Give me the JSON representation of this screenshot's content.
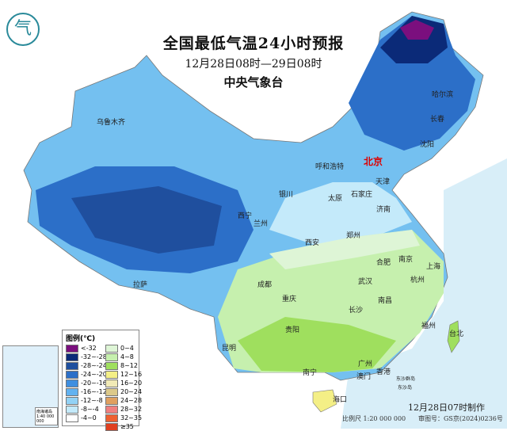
{
  "header": {
    "title": "全国最低气温24小时预报",
    "period": "12月28日08时—29日08时",
    "agency": "中央气象台"
  },
  "logo": {
    "icon": "cma-logo-icon"
  },
  "cities": [
    {
      "name": "哈尔滨",
      "capital": false
    },
    {
      "name": "长春",
      "capital": false
    },
    {
      "name": "沈阳",
      "capital": false
    },
    {
      "name": "乌鲁木齐",
      "capital": false
    },
    {
      "name": "呼和浩特",
      "capital": false
    },
    {
      "name": "北京",
      "capital": true
    },
    {
      "name": "天津",
      "capital": false
    },
    {
      "name": "银川",
      "capital": false
    },
    {
      "name": "太原",
      "capital": false
    },
    {
      "name": "石家庄",
      "capital": false
    },
    {
      "name": "西宁",
      "capital": false
    },
    {
      "name": "兰州",
      "capital": false
    },
    {
      "name": "济南",
      "capital": false
    },
    {
      "name": "郑州",
      "capital": false
    },
    {
      "name": "西安",
      "capital": false
    },
    {
      "name": "合肥",
      "capital": false
    },
    {
      "name": "南京",
      "capital": false
    },
    {
      "name": "上海",
      "capital": false
    },
    {
      "name": "拉萨",
      "capital": false
    },
    {
      "name": "成都",
      "capital": false
    },
    {
      "name": "武汉",
      "capital": false
    },
    {
      "name": "杭州",
      "capital": false
    },
    {
      "name": "重庆",
      "capital": false
    },
    {
      "name": "长沙",
      "capital": false
    },
    {
      "name": "南昌",
      "capital": false
    },
    {
      "name": "贵阳",
      "capital": false
    },
    {
      "name": "福州",
      "capital": false
    },
    {
      "name": "台北",
      "capital": false
    },
    {
      "name": "昆明",
      "capital": false
    },
    {
      "name": "南宁",
      "capital": false
    },
    {
      "name": "广州",
      "capital": false
    },
    {
      "name": "香港",
      "capital": false
    },
    {
      "name": "澳门",
      "capital": false
    },
    {
      "name": "海口",
      "capital": false
    },
    {
      "name": "东沙群岛",
      "capital": false
    },
    {
      "name": "东沙岛",
      "capital": false
    }
  ],
  "inset": {
    "caption": "南海诸岛",
    "scale": "1:40 000 000"
  },
  "legend": {
    "title": "图例(℃)",
    "items": [
      {
        "label": "<-32",
        "color": "#7b0f7e"
      },
      {
        "label": "-32~-28",
        "color": "#0b2a78"
      },
      {
        "label": "-28~-24",
        "color": "#1f4f9e"
      },
      {
        "label": "-24~-20",
        "color": "#2c6fc8"
      },
      {
        "label": "-20~-16",
        "color": "#3f8fe0"
      },
      {
        "label": "-16~-12",
        "color": "#62b2f0"
      },
      {
        "label": "-12~-8",
        "color": "#93d2f5"
      },
      {
        "label": "-8~-4",
        "color": "#c4eafa"
      },
      {
        "label": "-4~0",
        "color": "#ffffff"
      },
      {
        "label": "0~4",
        "color": "#def5d6"
      },
      {
        "label": "4~8",
        "color": "#c6f0ae"
      },
      {
        "label": "8~12",
        "color": "#9fdf5e"
      },
      {
        "label": "12~16",
        "color": "#f4ef86"
      },
      {
        "label": "16~20",
        "color": "#f1eab6"
      },
      {
        "label": "20~24",
        "color": "#dcc98a"
      },
      {
        "label": "24~28",
        "color": "#e0a060"
      },
      {
        "label": "28~32",
        "color": "#f08080"
      },
      {
        "label": "32~35",
        "color": "#ef6030"
      },
      {
        "label": "≥35",
        "color": "#e04020"
      }
    ]
  },
  "footer": {
    "made": "12月28日07时制作",
    "scale": "比例尺 1:20 000 000",
    "approval": "审图号：GS京(2024)0236号"
  }
}
